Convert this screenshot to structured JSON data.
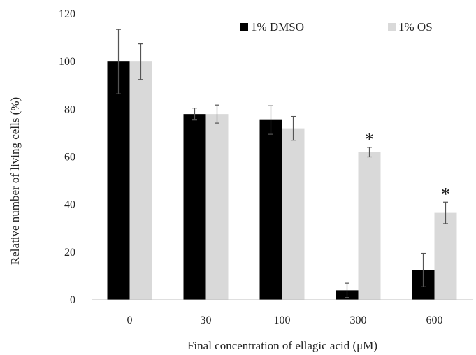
{
  "chart_data": {
    "type": "bar",
    "categories": [
      "0",
      "30",
      "100",
      "300",
      "600"
    ],
    "series": [
      {
        "name": "1% DMSO",
        "color": "#000000",
        "values": [
          100,
          78,
          75.5,
          4,
          12.5
        ],
        "errors": [
          13.5,
          2.5,
          6,
          3,
          7
        ]
      },
      {
        "name": "1% OS",
        "color": "#d9d9d9",
        "values": [
          100,
          78,
          72,
          62,
          36.5
        ],
        "errors": [
          7.5,
          3.8,
          5,
          2,
          4.5
        ]
      }
    ],
    "xlabel": "Final concentration of ellagic acid (μM)",
    "ylabel": "Relative number of living cells (%)",
    "ylim": [
      0,
      120
    ],
    "yticks": [
      0,
      20,
      40,
      60,
      80,
      100,
      120
    ],
    "grid": false,
    "legend_position": "top-right",
    "significance": {
      "marker": "*",
      "series_index": 1,
      "category_indices": [
        3,
        4
      ]
    }
  }
}
